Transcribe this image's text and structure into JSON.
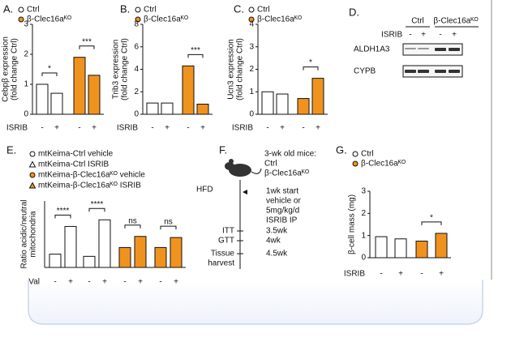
{
  "chart_data": [
    {
      "type": "bar",
      "panel": "A.",
      "legend": [
        {
          "name": "Ctrl",
          "color": "#ffffff",
          "marker": "circle"
        },
        {
          "name": "β-Clec16aᴷᴼ",
          "color": "#f0931e",
          "marker": "circle"
        }
      ],
      "ylabel": [
        "Cebpβ expression",
        "(fold change Ctrl)"
      ],
      "xlabel": "ISRIB",
      "categories": [
        "-",
        "+",
        "-",
        "+"
      ],
      "values": [
        1.0,
        0.7,
        1.9,
        1.3
      ],
      "colors": [
        "#ffffff",
        "#ffffff",
        "#f0931e",
        "#f0931e"
      ],
      "ylim": [
        0,
        3
      ],
      "yticks": [
        0,
        1,
        2,
        3
      ],
      "annotations": [
        {
          "text": "*",
          "between": [
            0,
            1
          ]
        },
        {
          "text": "***",
          "between": [
            2,
            3
          ]
        }
      ]
    },
    {
      "type": "bar",
      "panel": "B.",
      "legend": [
        {
          "name": "Ctrl",
          "color": "#ffffff",
          "marker": "circle"
        },
        {
          "name": "β-Clec16aᴷᴼ",
          "color": "#f0931e",
          "marker": "circle"
        }
      ],
      "ylabel": [
        "Trib3 expression",
        "(fold change Ctrl)"
      ],
      "xlabel": "ISRIB",
      "categories": [
        "-",
        "+",
        "-",
        "+"
      ],
      "values": [
        1.0,
        1.0,
        4.3,
        0.9
      ],
      "colors": [
        "#ffffff",
        "#ffffff",
        "#f0931e",
        "#f0931e"
      ],
      "ylim": [
        0,
        8
      ],
      "yticks": [
        0,
        2,
        4,
        6,
        8
      ],
      "annotations": [
        {
          "text": "***",
          "between": [
            2,
            3
          ]
        }
      ]
    },
    {
      "type": "bar",
      "panel": "C.",
      "legend": [
        {
          "name": "Ctrl",
          "color": "#ffffff",
          "marker": "circle"
        },
        {
          "name": "β-Clec16aᴷᴼ",
          "color": "#f0931e",
          "marker": "circle"
        }
      ],
      "ylabel": [
        "Ucn3 expression",
        "(fold change Ctrl)"
      ],
      "xlabel": "ISRIB",
      "categories": [
        "-",
        "+",
        "-",
        "+"
      ],
      "values": [
        1.0,
        0.9,
        0.7,
        1.6
      ],
      "colors": [
        "#ffffff",
        "#ffffff",
        "#f0931e",
        "#f0931e"
      ],
      "ylim": [
        0,
        4
      ],
      "yticks": [
        0,
        1,
        2,
        3,
        4
      ],
      "annotations": [
        {
          "text": "*",
          "between": [
            2,
            3
          ]
        }
      ]
    },
    {
      "type": "bar",
      "panel": "E.",
      "legend": [
        {
          "name": "mtKeima-Ctrl vehicle",
          "color": "#ffffff",
          "marker": "circle"
        },
        {
          "name": "mtKeima-Ctrl ISRIB",
          "color": "#ffffff",
          "marker": "triangle"
        },
        {
          "name": "mtKeima-β-Clec16aᴷᴼ vehicle",
          "color": "#f0931e",
          "marker": "circle"
        },
        {
          "name": "mtKeima-β-Clec16aᴷᴼ ISRIB",
          "color": "#f0931e",
          "marker": "triangle"
        }
      ],
      "ylabel": [
        "Ratio acidic/neutral",
        "mitochondria"
      ],
      "xlabel": "Val",
      "categories": [
        "-",
        "+",
        "-",
        "+",
        "-",
        "+",
        "-",
        "+"
      ],
      "values": [
        1.2,
        3.7,
        1.0,
        4.3,
        1.8,
        2.8,
        1.8,
        2.7
      ],
      "colors": [
        "#ffffff",
        "#ffffff",
        "#ffffff",
        "#ffffff",
        "#f0931e",
        "#f0931e",
        "#f0931e",
        "#f0931e"
      ],
      "ylim": [
        0,
        6
      ],
      "annotations": [
        {
          "text": "****",
          "between": [
            0,
            1
          ]
        },
        {
          "text": "****",
          "between": [
            2,
            3
          ]
        },
        {
          "text": "ns",
          "between": [
            4,
            5
          ]
        },
        {
          "text": "ns",
          "between": [
            6,
            7
          ]
        }
      ]
    },
    {
      "type": "bar",
      "panel": "G.",
      "legend": [
        {
          "name": "Ctrl",
          "color": "#ffffff",
          "marker": "circle"
        },
        {
          "name": "β-Clec16aᴷᴼ",
          "color": "#f0931e",
          "marker": "circle"
        }
      ],
      "ylabel": [
        "β-cell mass (mg)"
      ],
      "xlabel": "ISRIB",
      "categories": [
        "-",
        "+",
        "-",
        "+"
      ],
      "values": [
        0.95,
        0.85,
        0.75,
        1.1
      ],
      "colors": [
        "#ffffff",
        "#ffffff",
        "#f0931e",
        "#f0931e"
      ],
      "ylim": [
        0,
        3
      ],
      "yticks": [
        0,
        1,
        2,
        3
      ],
      "annotations": [
        {
          "text": "*",
          "between": [
            2,
            3
          ]
        }
      ]
    }
  ],
  "blot": {
    "panel": "D.",
    "groups": [
      "Ctrl",
      "β-Clec16aᴷᴼ"
    ],
    "treatment": "ISRIB",
    "lanes": [
      "-",
      "+",
      "-",
      "+"
    ],
    "rows": [
      "ALDH1A3",
      "CYPB"
    ]
  },
  "timeline": {
    "panel": "F.",
    "cohort": [
      "3-wk old mice:",
      "Ctrl",
      "β-Clec16aᴷᴼ"
    ],
    "diet": "HFD",
    "start": [
      "1wk start",
      "vehicle or",
      "5mg/kg/d",
      "ISRIB IP"
    ],
    "events": [
      {
        "label": "ITT",
        "time": "3.5wk"
      },
      {
        "label": "GTT",
        "time": "4wk"
      },
      {
        "label": [
          "Tissue",
          "harvest"
        ],
        "time": "4.5wk"
      }
    ]
  }
}
